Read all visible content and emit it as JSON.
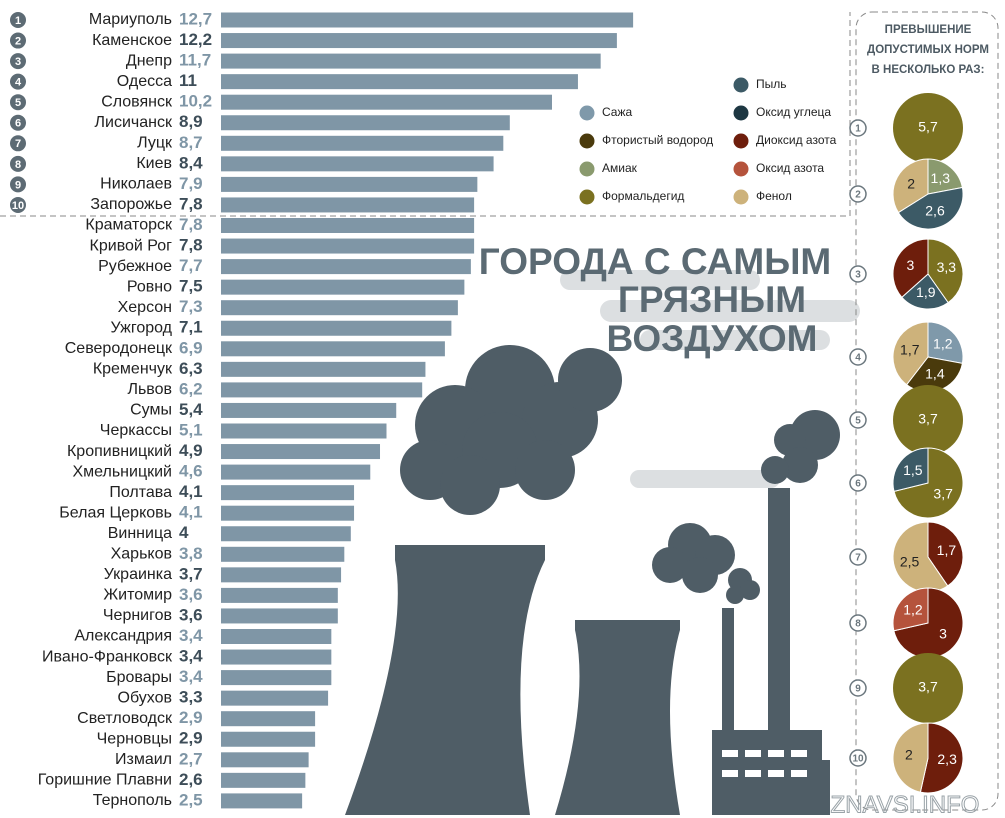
{
  "chart_data": [
    {
      "type": "bar",
      "title": [
        "ГОРОДА С САМЫМ",
        "ГРЯЗНЫМ",
        "ВОЗДУХОМ"
      ],
      "ranks": [
        1,
        2,
        3,
        4,
        5,
        6,
        7,
        8,
        9,
        10
      ],
      "categories": [
        "Мариуполь",
        "Каменское",
        "Днепр",
        "Одесса",
        "Словянск",
        "Лисичанск",
        "Луцк",
        "Киев",
        "Николаев",
        "Запорожье",
        "Краматорск",
        "Кривой Рог",
        "Рубежное",
        "Ровно",
        "Херсон",
        "Ужгород",
        "Северодонецк",
        "Кременчук",
        "Львов",
        "Сумы",
        "Черкассы",
        "Кропивницкий",
        "Хмельницкий",
        "Полтава",
        "Белая Церковь",
        "Винница",
        "Харьков",
        "Украинка",
        "Житомир",
        "Чернигов",
        "Александрия",
        "Ивано-Франковск",
        "Бровары",
        "Обухов",
        "Светловодск",
        "Черновцы",
        "Измаил",
        "Горишние Плавни",
        "Тернополь"
      ],
      "values": [
        12.7,
        12.2,
        11.7,
        11,
        10.2,
        8.9,
        8.7,
        8.4,
        7.9,
        7.8,
        7.8,
        7.8,
        7.7,
        7.5,
        7.3,
        7.1,
        6.9,
        6.3,
        6.2,
        5.4,
        5.1,
        4.9,
        4.6,
        4.1,
        4.1,
        4,
        3.8,
        3.7,
        3.6,
        3.6,
        3.4,
        3.4,
        3.4,
        3.3,
        2.9,
        2.9,
        2.7,
        2.6,
        2.5
      ],
      "value_labels": [
        "12,7",
        "12,2",
        "11,7",
        "11",
        "10,2",
        "8,9",
        "8,7",
        "8,4",
        "7,9",
        "7,8",
        "7,8",
        "7,8",
        "7,7",
        "7,5",
        "7,3",
        "7,1",
        "6,9",
        "6,3",
        "6,2",
        "5,4",
        "5,1",
        "4,9",
        "4,6",
        "4,1",
        "4,1",
        "4",
        "3,8",
        "3,7",
        "3,6",
        "3,6",
        "3,4",
        "3,4",
        "3,4",
        "3,3",
        "2,9",
        "2,9",
        "2,7",
        "2,6",
        "2,5"
      ],
      "color": "#7f96a6",
      "watermark": "ZNAVSI.INFO"
    },
    {
      "type": "pie",
      "title": [
        "ПРЕВЫШЕНИЕ",
        "ДОПУСТИМЫХ НОРМ",
        "В НЕСКОЛЬКО РАЗ:"
      ],
      "series": [
        {
          "name": "Сажа",
          "color": "#7f99aa"
        },
        {
          "name": "Фтористый водород",
          "color": "#4a3a0c"
        },
        {
          "name": "Амиак",
          "color": "#8a9a6e"
        },
        {
          "name": "Формальдегид",
          "color": "#7b7120"
        },
        {
          "name": "Пыль",
          "color": "#3c5a66"
        },
        {
          "name": "Оксид углеца",
          "color": "#1d3742"
        },
        {
          "name": "Диоксид азота",
          "color": "#6e1e0c"
        },
        {
          "name": "Оксид азота",
          "color": "#b5533c"
        },
        {
          "name": "Фенол",
          "color": "#cdb27b"
        }
      ],
      "pies": [
        {
          "values": [
            null,
            null,
            null,
            5.7,
            null,
            null,
            null,
            null,
            null
          ],
          "value_labels": [
            null,
            null,
            null,
            "5,7",
            null,
            null,
            null,
            null,
            null
          ]
        },
        {
          "values": [
            null,
            null,
            1.3,
            null,
            2.6,
            null,
            null,
            null,
            2
          ],
          "value_labels": [
            null,
            null,
            "1,3",
            null,
            "2,6",
            null,
            null,
            null,
            "2"
          ]
        },
        {
          "values": [
            null,
            null,
            null,
            3.3,
            1.9,
            null,
            3,
            null,
            null
          ],
          "value_labels": [
            null,
            null,
            null,
            "3,3",
            "1,9",
            null,
            "3",
            null,
            null
          ]
        },
        {
          "values": [
            1.2,
            1.4,
            null,
            null,
            null,
            null,
            null,
            null,
            1.7
          ],
          "value_labels": [
            "1,2",
            "1,4",
            null,
            null,
            null,
            null,
            null,
            null,
            "1,7"
          ]
        },
        {
          "values": [
            null,
            null,
            null,
            3.7,
            null,
            null,
            null,
            null,
            null
          ],
          "value_labels": [
            null,
            null,
            null,
            "3,7",
            null,
            null,
            null,
            null,
            null
          ]
        },
        {
          "values": [
            null,
            null,
            null,
            3.7,
            1.5,
            null,
            null,
            null,
            null
          ],
          "value_labels": [
            null,
            null,
            null,
            "3,7",
            "1,5",
            null,
            null,
            null,
            null
          ]
        },
        {
          "values": [
            null,
            null,
            null,
            null,
            null,
            null,
            1.7,
            null,
            2.5
          ],
          "value_labels": [
            null,
            null,
            null,
            null,
            null,
            null,
            "1,7",
            null,
            "2,5"
          ]
        },
        {
          "values": [
            null,
            null,
            null,
            null,
            null,
            null,
            3,
            1.2,
            null
          ],
          "value_labels": [
            null,
            null,
            null,
            null,
            null,
            null,
            "3",
            "1,2",
            null
          ]
        },
        {
          "values": [
            null,
            null,
            null,
            3.7,
            null,
            null,
            null,
            null,
            null
          ],
          "value_labels": [
            null,
            null,
            null,
            "3,7",
            null,
            null,
            null,
            null,
            null
          ]
        },
        {
          "values": [
            null,
            null,
            null,
            null,
            null,
            null,
            2.3,
            null,
            2
          ],
          "value_labels": [
            null,
            null,
            null,
            null,
            null,
            null,
            "2,3",
            null,
            "2"
          ]
        }
      ]
    }
  ]
}
